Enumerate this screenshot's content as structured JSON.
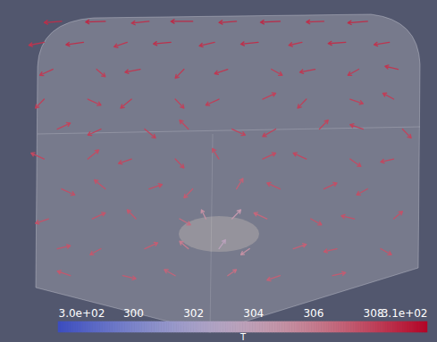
{
  "chart_data": {
    "type": "vector_field",
    "xlim": [
      0,
      1
    ],
    "ylim": [
      0,
      1
    ],
    "tick_labels": false,
    "colorbar": {
      "title": "T",
      "range": [
        297.5,
        309.8
      ],
      "colors": [
        "#3b4cc0",
        "#dddddd",
        "#b40426"
      ],
      "ticks": [
        {
          "value": 297.5,
          "label": "3.0e+02"
        },
        300,
        302,
        304,
        306,
        308,
        {
          "value": 309.8,
          "label": "3.1e+02"
        }
      ]
    },
    "glyphs": [
      {
        "x": 0.14,
        "y": 0.93,
        "u": -0.04,
        "v": -0.004,
        "T": 308.6
      },
      {
        "x": 0.24,
        "y": 0.93,
        "u": -0.045,
        "v": -0.002,
        "T": 308.7
      },
      {
        "x": 0.34,
        "y": 0.93,
        "u": -0.04,
        "v": -0.006,
        "T": 308.5
      },
      {
        "x": 0.44,
        "y": 0.93,
        "u": -0.05,
        "v": 0,
        "T": 308.7
      },
      {
        "x": 0.54,
        "y": 0.93,
        "u": -0.04,
        "v": -0.004,
        "T": 308.6
      },
      {
        "x": 0.64,
        "y": 0.93,
        "u": -0.045,
        "v": -0.003,
        "T": 308.7
      },
      {
        "x": 0.74,
        "y": 0.93,
        "u": -0.04,
        "v": -0.002,
        "T": 308.5
      },
      {
        "x": 0.84,
        "y": 0.93,
        "u": -0.045,
        "v": -0.005,
        "T": 308.6
      },
      {
        "x": 0.1,
        "y": 0.86,
        "u": -0.035,
        "v": -0.01,
        "T": 308.4
      },
      {
        "x": 0.19,
        "y": 0.86,
        "u": -0.04,
        "v": -0.008,
        "T": 308.5
      },
      {
        "x": 0.29,
        "y": 0.86,
        "u": -0.03,
        "v": -0.015,
        "T": 308.3
      },
      {
        "x": 0.39,
        "y": 0.86,
        "u": -0.04,
        "v": -0.005,
        "T": 308.5
      },
      {
        "x": 0.49,
        "y": 0.86,
        "u": -0.035,
        "v": -0.012,
        "T": 308.4
      },
      {
        "x": 0.59,
        "y": 0.86,
        "u": -0.04,
        "v": -0.006,
        "T": 308.5
      },
      {
        "x": 0.69,
        "y": 0.86,
        "u": -0.03,
        "v": -0.01,
        "T": 308.3
      },
      {
        "x": 0.79,
        "y": 0.86,
        "u": -0.04,
        "v": -0.004,
        "T": 308.5
      },
      {
        "x": 0.89,
        "y": 0.86,
        "u": -0.035,
        "v": -0.008,
        "T": 308.4
      },
      {
        "x": 0.12,
        "y": 0.77,
        "u": -0.03,
        "v": -0.02,
        "T": 308.2
      },
      {
        "x": 0.22,
        "y": 0.77,
        "u": 0.02,
        "v": -0.025,
        "T": 308.1
      },
      {
        "x": 0.32,
        "y": 0.77,
        "u": -0.035,
        "v": -0.01,
        "T": 308.3
      },
      {
        "x": 0.42,
        "y": 0.77,
        "u": -0.02,
        "v": -0.03,
        "T": 308.2
      },
      {
        "x": 0.52,
        "y": 0.77,
        "u": -0.03,
        "v": -0.015,
        "T": 308.3
      },
      {
        "x": 0.62,
        "y": 0.77,
        "u": 0.025,
        "v": -0.02,
        "T": 308.1
      },
      {
        "x": 0.72,
        "y": 0.77,
        "u": -0.035,
        "v": -0.01,
        "T": 308.3
      },
      {
        "x": 0.82,
        "y": 0.77,
        "u": -0.025,
        "v": -0.02,
        "T": 308.2
      },
      {
        "x": 0.91,
        "y": 0.77,
        "u": -0.03,
        "v": 0.01,
        "T": 308.3
      },
      {
        "x": 0.1,
        "y": 0.67,
        "u": -0.02,
        "v": -0.03,
        "T": 308.1
      },
      {
        "x": 0.2,
        "y": 0.67,
        "u": 0.03,
        "v": -0.02,
        "T": 308.0
      },
      {
        "x": 0.3,
        "y": 0.67,
        "u": -0.025,
        "v": -0.03,
        "T": 308.1
      },
      {
        "x": 0.4,
        "y": 0.67,
        "u": 0.02,
        "v": -0.03,
        "T": 308.0
      },
      {
        "x": 0.5,
        "y": 0.67,
        "u": -0.03,
        "v": -0.02,
        "T": 308.1
      },
      {
        "x": 0.6,
        "y": 0.67,
        "u": 0.03,
        "v": 0.02,
        "T": 308.0
      },
      {
        "x": 0.7,
        "y": 0.67,
        "u": -0.02,
        "v": -0.03,
        "T": 308.1
      },
      {
        "x": 0.8,
        "y": 0.67,
        "u": 0.03,
        "v": -0.015,
        "T": 308.0
      },
      {
        "x": 0.9,
        "y": 0.67,
        "u": -0.025,
        "v": 0.02,
        "T": 308.1
      },
      {
        "x": 0.13,
        "y": 0.57,
        "u": 0.03,
        "v": 0.02,
        "T": 307.9
      },
      {
        "x": 0.23,
        "y": 0.57,
        "u": -0.03,
        "v": -0.02,
        "T": 308.0
      },
      {
        "x": 0.33,
        "y": 0.57,
        "u": 0.025,
        "v": -0.03,
        "T": 307.9
      },
      {
        "x": 0.43,
        "y": 0.57,
        "u": -0.02,
        "v": 0.03,
        "T": 307.8
      },
      {
        "x": 0.53,
        "y": 0.57,
        "u": 0.03,
        "v": -0.02,
        "T": 307.9
      },
      {
        "x": 0.63,
        "y": 0.57,
        "u": -0.03,
        "v": -0.025,
        "T": 308.0
      },
      {
        "x": 0.73,
        "y": 0.57,
        "u": 0.02,
        "v": 0.03,
        "T": 307.9
      },
      {
        "x": 0.83,
        "y": 0.57,
        "u": -0.03,
        "v": 0.015,
        "T": 308.0
      },
      {
        "x": 0.92,
        "y": 0.57,
        "u": 0.02,
        "v": -0.03,
        "T": 307.9
      },
      {
        "x": 0.1,
        "y": 0.47,
        "u": -0.03,
        "v": 0.02,
        "T": 307.8
      },
      {
        "x": 0.2,
        "y": 0.47,
        "u": 0.025,
        "v": 0.03,
        "T": 307.7
      },
      {
        "x": 0.3,
        "y": 0.47,
        "u": -0.03,
        "v": -0.015,
        "T": 307.8
      },
      {
        "x": 0.4,
        "y": 0.47,
        "u": 0.02,
        "v": -0.03,
        "T": 307.7
      },
      {
        "x": 0.5,
        "y": 0.47,
        "u": -0.015,
        "v": 0.035,
        "T": 307.6
      },
      {
        "x": 0.6,
        "y": 0.47,
        "u": 0.03,
        "v": 0.02,
        "T": 307.7
      },
      {
        "x": 0.7,
        "y": 0.47,
        "u": -0.03,
        "v": 0.02,
        "T": 307.8
      },
      {
        "x": 0.8,
        "y": 0.47,
        "u": 0.025,
        "v": -0.025,
        "T": 307.7
      },
      {
        "x": 0.9,
        "y": 0.47,
        "u": -0.03,
        "v": -0.01,
        "T": 307.8
      },
      {
        "x": 0.14,
        "y": 0.37,
        "u": 0.03,
        "v": -0.02,
        "T": 307.6
      },
      {
        "x": 0.24,
        "y": 0.37,
        "u": -0.025,
        "v": 0.03,
        "T": 307.5
      },
      {
        "x": 0.34,
        "y": 0.37,
        "u": 0.03,
        "v": 0.015,
        "T": 307.6
      },
      {
        "x": 0.44,
        "y": 0.37,
        "u": -0.02,
        "v": -0.03,
        "T": 307.2
      },
      {
        "x": 0.54,
        "y": 0.37,
        "u": 0.015,
        "v": 0.035,
        "T": 307.0
      },
      {
        "x": 0.64,
        "y": 0.37,
        "u": -0.03,
        "v": 0.02,
        "T": 307.5
      },
      {
        "x": 0.74,
        "y": 0.37,
        "u": 0.03,
        "v": 0.02,
        "T": 307.6
      },
      {
        "x": 0.84,
        "y": 0.37,
        "u": -0.025,
        "v": -0.02,
        "T": 307.6
      },
      {
        "x": 0.11,
        "y": 0.27,
        "u": -0.03,
        "v": -0.015,
        "T": 307.5
      },
      {
        "x": 0.21,
        "y": 0.27,
        "u": 0.03,
        "v": 0.02,
        "T": 307.4
      },
      {
        "x": 0.31,
        "y": 0.27,
        "u": -0.02,
        "v": 0.03,
        "T": 307.3
      },
      {
        "x": 0.41,
        "y": 0.27,
        "u": 0.025,
        "v": -0.02,
        "T": 306.6
      },
      {
        "x": 0.47,
        "y": 0.27,
        "u": -0.01,
        "v": 0.03,
        "T": 305.0
      },
      {
        "x": 0.53,
        "y": 0.27,
        "u": 0.02,
        "v": 0.03,
        "T": 304.5
      },
      {
        "x": 0.61,
        "y": 0.27,
        "u": -0.03,
        "v": 0.02,
        "T": 306.8
      },
      {
        "x": 0.71,
        "y": 0.27,
        "u": 0.025,
        "v": -0.02,
        "T": 307.4
      },
      {
        "x": 0.81,
        "y": 0.27,
        "u": -0.03,
        "v": 0.01,
        "T": 307.5
      },
      {
        "x": 0.9,
        "y": 0.27,
        "u": 0.02,
        "v": 0.025,
        "T": 307.5
      },
      {
        "x": 0.13,
        "y": 0.17,
        "u": 0.03,
        "v": 0.01,
        "T": 307.4
      },
      {
        "x": 0.23,
        "y": 0.17,
        "u": -0.025,
        "v": -0.02,
        "T": 307.3
      },
      {
        "x": 0.33,
        "y": 0.17,
        "u": 0.03,
        "v": 0.02,
        "T": 307.1
      },
      {
        "x": 0.43,
        "y": 0.17,
        "u": -0.02,
        "v": 0.025,
        "T": 306.0
      },
      {
        "x": 0.5,
        "y": 0.17,
        "u": 0.015,
        "v": 0.03,
        "T": 303.5
      },
      {
        "x": 0.57,
        "y": 0.17,
        "u": -0.02,
        "v": -0.02,
        "T": 305.0
      },
      {
        "x": 0.67,
        "y": 0.17,
        "u": 0.03,
        "v": 0.015,
        "T": 307.0
      },
      {
        "x": 0.77,
        "y": 0.17,
        "u": -0.03,
        "v": -0.01,
        "T": 307.3
      },
      {
        "x": 0.87,
        "y": 0.17,
        "u": 0.025,
        "v": -0.02,
        "T": 307.4
      },
      {
        "x": 0.16,
        "y": 0.08,
        "u": -0.03,
        "v": 0.015,
        "T": 307.3
      },
      {
        "x": 0.28,
        "y": 0.08,
        "u": 0.03,
        "v": -0.01,
        "T": 307.2
      },
      {
        "x": 0.4,
        "y": 0.08,
        "u": -0.025,
        "v": 0.02,
        "T": 306.9
      },
      {
        "x": 0.52,
        "y": 0.08,
        "u": 0.02,
        "v": 0.02,
        "T": 306.5
      },
      {
        "x": 0.64,
        "y": 0.08,
        "u": -0.03,
        "v": -0.015,
        "T": 307.0
      },
      {
        "x": 0.76,
        "y": 0.08,
        "u": 0.03,
        "v": 0.01,
        "T": 307.2
      }
    ]
  }
}
